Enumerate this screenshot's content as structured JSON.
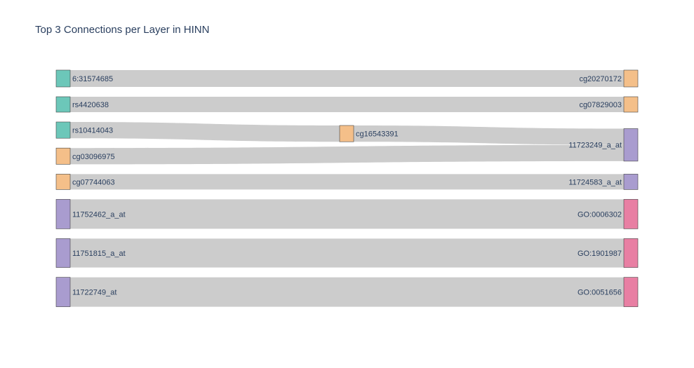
{
  "chart_data": {
    "type": "sankey",
    "title": "Top 3 Connections per Layer in HINN",
    "link_color": "#cccccc",
    "colors": {
      "snp": "#6cc7b9",
      "cpg": "#f4bf89",
      "gene": "#a99ccf",
      "go": "#e87fa3"
    },
    "nodes": [
      {
        "id": "6:31574685",
        "label": "6:31574685",
        "group": "snp",
        "column": 0
      },
      {
        "id": "rs4420638",
        "label": "rs4420638",
        "group": "snp",
        "column": 0
      },
      {
        "id": "rs10414043",
        "label": "rs10414043",
        "group": "snp",
        "column": 0
      },
      {
        "id": "cg03096975",
        "label": "cg03096975",
        "group": "cpg",
        "column": 0
      },
      {
        "id": "cg07744063",
        "label": "cg07744063",
        "group": "cpg",
        "column": 0
      },
      {
        "id": "11752462_a_at",
        "label": "11752462_a_at",
        "group": "gene",
        "column": 0
      },
      {
        "id": "11751815_a_at",
        "label": "11751815_a_at",
        "group": "gene",
        "column": 0
      },
      {
        "id": "11722749_at",
        "label": "11722749_at",
        "group": "gene",
        "column": 0
      },
      {
        "id": "cg16543391",
        "label": "cg16543391",
        "group": "cpg",
        "column": 1
      },
      {
        "id": "cg20270172",
        "label": "cg20270172",
        "group": "cpg",
        "column": 2
      },
      {
        "id": "cg07829003",
        "label": "cg07829003",
        "group": "cpg",
        "column": 2
      },
      {
        "id": "11723249_a_at",
        "label": "11723249_a_at",
        "group": "gene",
        "column": 2
      },
      {
        "id": "11724583_a_at",
        "label": "11724583_a_at",
        "group": "gene",
        "column": 2
      },
      {
        "id": "GO:0006302",
        "label": "GO:0006302",
        "group": "go",
        "column": 2
      },
      {
        "id": "GO:1901987",
        "label": "GO:1901987",
        "group": "go",
        "column": 2
      },
      {
        "id": "GO:0051656",
        "label": "GO:0051656",
        "group": "go",
        "column": 2
      }
    ],
    "links": [
      {
        "source": "6:31574685",
        "target": "cg20270172",
        "value": 0.6
      },
      {
        "source": "rs4420638",
        "target": "cg07829003",
        "value": 0.55
      },
      {
        "source": "rs10414043",
        "target": "cg16543391",
        "value": 0.58
      },
      {
        "source": "cg16543391",
        "target": "11723249_a_at",
        "value": 0.58
      },
      {
        "source": "cg03096975",
        "target": "11723249_a_at",
        "value": 0.58
      },
      {
        "source": "cg07744063",
        "target": "11724583_a_at",
        "value": 0.55
      },
      {
        "source": "11752462_a_at",
        "target": "GO:0006302",
        "value": 1.05
      },
      {
        "source": "11751815_a_at",
        "target": "GO:1901987",
        "value": 1.03
      },
      {
        "source": "11722749_at",
        "target": "GO:0051656",
        "value": 1.05
      }
    ]
  }
}
